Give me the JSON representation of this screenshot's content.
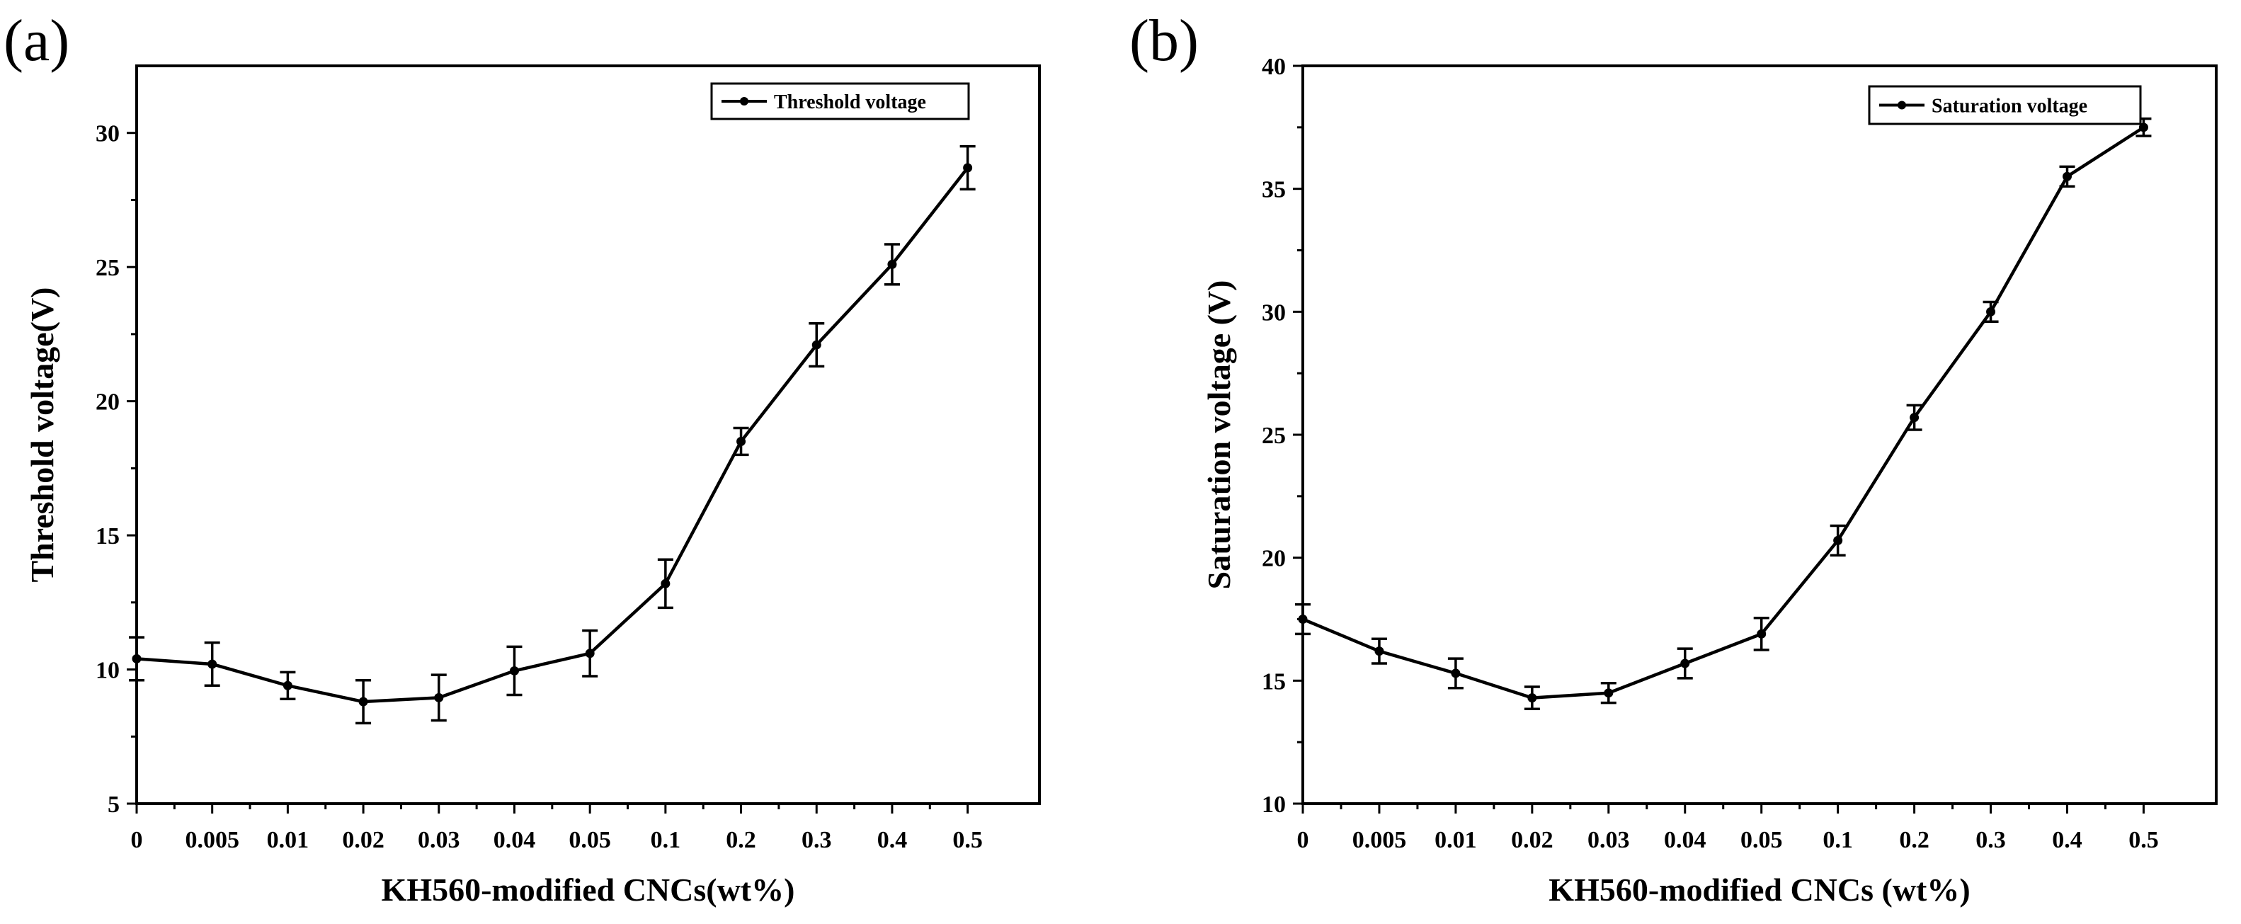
{
  "chart_data": [
    {
      "type": "line",
      "panel_label": "(a)",
      "categories": [
        "0",
        "0.005",
        "0.01",
        "0.02",
        "0.03",
        "0.04",
        "0.05",
        "0.1",
        "0.2",
        "0.3",
        "0.4",
        "0.5"
      ],
      "series": [
        {
          "name": "Threshold voltage",
          "values": [
            10.4,
            10.2,
            9.4,
            8.8,
            8.95,
            9.95,
            10.6,
            13.2,
            18.5,
            22.1,
            25.1,
            28.7
          ],
          "errors": [
            0.8,
            0.8,
            0.5,
            0.8,
            0.85,
            0.9,
            0.85,
            0.9,
            0.5,
            0.8,
            0.75,
            0.8
          ]
        }
      ],
      "xlabel": "KH560-modified CNCs(wt%)",
      "ylabel": "Threshold voltage(V)",
      "ylim": [
        5,
        32.5
      ],
      "yticks": [
        5,
        10,
        15,
        20,
        25,
        30
      ],
      "ytick_labels": [
        "5",
        "10",
        "15",
        "20",
        "25",
        "30"
      ],
      "legend": "top-right"
    },
    {
      "type": "line",
      "panel_label": "(b)",
      "categories": [
        "0",
        "0.005",
        "0.01",
        "0.02",
        "0.03",
        "0.04",
        "0.05",
        "0.1",
        "0.2",
        "0.3",
        "0.4",
        "0.5"
      ],
      "series": [
        {
          "name": "Saturation voltage",
          "values": [
            17.5,
            16.2,
            15.3,
            14.3,
            14.5,
            15.7,
            16.9,
            20.7,
            25.7,
            30.0,
            35.5,
            37.5
          ],
          "errors": [
            0.6,
            0.5,
            0.6,
            0.45,
            0.4,
            0.6,
            0.65,
            0.6,
            0.5,
            0.4,
            0.4,
            0.35
          ]
        }
      ],
      "xlabel": "KH560-modified CNCs (wt%)",
      "ylabel": "Saturation voltage (V)",
      "ylim": [
        10,
        40
      ],
      "yticks": [
        10,
        15,
        20,
        25,
        30,
        35,
        40
      ],
      "ytick_labels": [
        "10",
        "15",
        "20",
        "25",
        "30",
        "35",
        "40"
      ],
      "legend": "top-right"
    }
  ]
}
